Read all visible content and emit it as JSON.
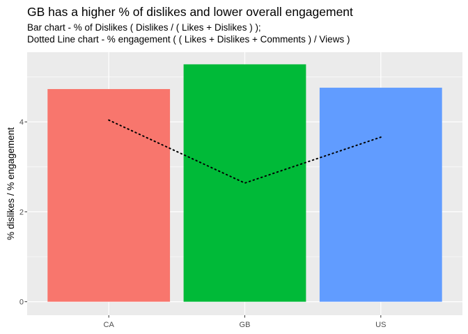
{
  "chart_data": {
    "type": "bar",
    "title": "GB has a higher % of dislikes and lower overall engagement",
    "subtitle_lines": [
      "Bar chart - % of Dislikes ( Dislikes / ( Likes + Dislikes ) );",
      "Dotted Line chart - % engagement ( ( Likes + Dislikes + Comments ) / Views )"
    ],
    "xlabel": "",
    "ylabel": "% dislikes / % engagement",
    "categories": [
      "CA",
      "GB",
      "US"
    ],
    "ylim": [
      -0.3,
      5.55
    ],
    "yticks": [
      0,
      2,
      4
    ],
    "grid": true,
    "legend": "none",
    "series": [
      {
        "kind": "bar",
        "values": [
          4.73,
          5.28,
          4.76
        ],
        "colors": [
          "#F8766D",
          "#00BA38",
          "#619CFF"
        ]
      },
      {
        "kind": "line",
        "style": "dotted",
        "color": "#000000",
        "values": [
          4.04,
          2.64,
          3.66
        ]
      }
    ]
  }
}
